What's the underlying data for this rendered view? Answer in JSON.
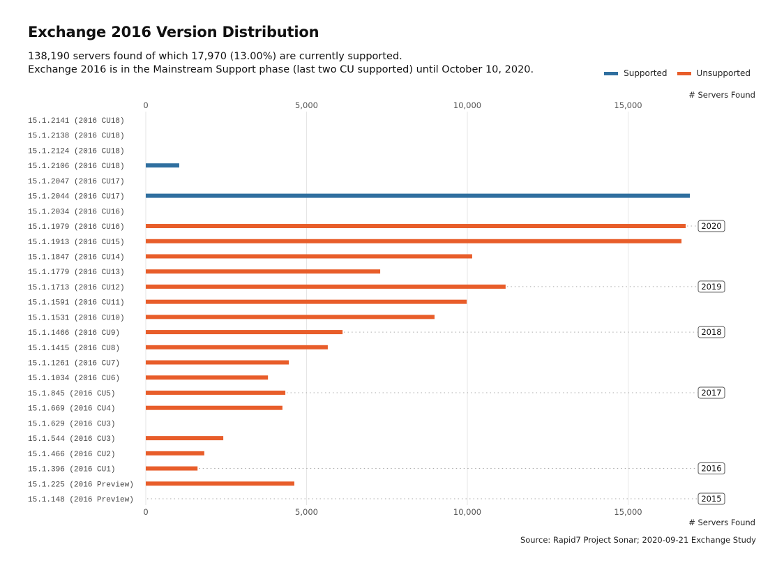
{
  "header": {
    "title": "Exchange 2016 Version Distribution",
    "subtitle_line1": "138,190 servers found of which 17,970 (13.00%) are currently supported.",
    "subtitle_line2": "Exchange 2016 is in the Mainstream Support phase (last two CU supported) until October 10, 2020."
  },
  "legend": {
    "items": [
      {
        "label": "Supported",
        "color": "#2f6f9f"
      },
      {
        "label": "Unsupported",
        "color": "#e85d2a"
      }
    ]
  },
  "source": "Source: Rapid7 Project Sonar; 2020-09-21 Exchange Study",
  "chart_data": {
    "type": "bar",
    "orientation": "horizontal",
    "title": "Exchange 2016 Version Distribution",
    "xlabel": "# Servers Found",
    "ylabel": "",
    "xlim": [
      0,
      17500
    ],
    "xticks": [
      0,
      5000,
      10000,
      15000
    ],
    "xtick_labels": [
      "0",
      "5,000",
      "10,000",
      "15,000"
    ],
    "grid": "vertical",
    "legend_position": "top-right",
    "colors": {
      "Supported": "#2f6f9f",
      "Unsupported": "#e85d2a"
    },
    "categories": [
      "15.1.2141 (2016 CU18)",
      "15.1.2138 (2016 CU18)",
      "15.1.2124 (2016 CU18)",
      "15.1.2106 (2016 CU18)",
      "15.1.2047 (2016 CU17)",
      "15.1.2044 (2016 CU17)",
      "15.1.2034 (2016 CU16)",
      "15.1.1979 (2016 CU16)",
      "15.1.1913 (2016 CU15)",
      "15.1.1847 (2016 CU14)",
      "15.1.1779 (2016 CU13)",
      "15.1.1713 (2016 CU12)",
      "15.1.1591 (2016 CU11)",
      "15.1.1531 (2016 CU10)",
      "15.1.1466 (2016 CU9)",
      "15.1.1415 (2016 CU8)",
      "15.1.1261 (2016 CU7)",
      "15.1.1034 (2016 CU6)",
      "15.1.845 (2016 CU5)",
      "15.1.669 (2016 CU4)",
      "15.1.629 (2016 CU3)",
      "15.1.544 (2016 CU3)",
      "15.1.466 (2016 CU2)",
      "15.1.396 (2016 CU1)",
      "15.1.225 (2016 Preview)",
      "15.1.148 (2016 Preview)"
    ],
    "values": [
      0,
      0,
      0,
      1040,
      0,
      16920,
      0,
      16790,
      16660,
      10150,
      7290,
      11190,
      9980,
      8980,
      6120,
      5660,
      4450,
      3800,
      4340,
      4250,
      0,
      2410,
      1820,
      1610,
      4620,
      0
    ],
    "status": [
      "Supported",
      "Supported",
      "Supported",
      "Supported",
      "Supported",
      "Supported",
      "Unsupported",
      "Unsupported",
      "Unsupported",
      "Unsupported",
      "Unsupported",
      "Unsupported",
      "Unsupported",
      "Unsupported",
      "Unsupported",
      "Unsupported",
      "Unsupported",
      "Unsupported",
      "Unsupported",
      "Unsupported",
      "Unsupported",
      "Unsupported",
      "Unsupported",
      "Unsupported",
      "Unsupported",
      "Unsupported"
    ],
    "year_annotations": [
      {
        "category": "15.1.1979 (2016 CU16)",
        "label": "2020"
      },
      {
        "category": "15.1.1713 (2016 CU12)",
        "label": "2019"
      },
      {
        "category": "15.1.1466 (2016 CU9)",
        "label": "2018"
      },
      {
        "category": "15.1.845 (2016 CU5)",
        "label": "2017"
      },
      {
        "category": "15.1.396 (2016 CU1)",
        "label": "2016"
      },
      {
        "category": "15.1.148 (2016 Preview)",
        "label": "2015"
      }
    ]
  }
}
